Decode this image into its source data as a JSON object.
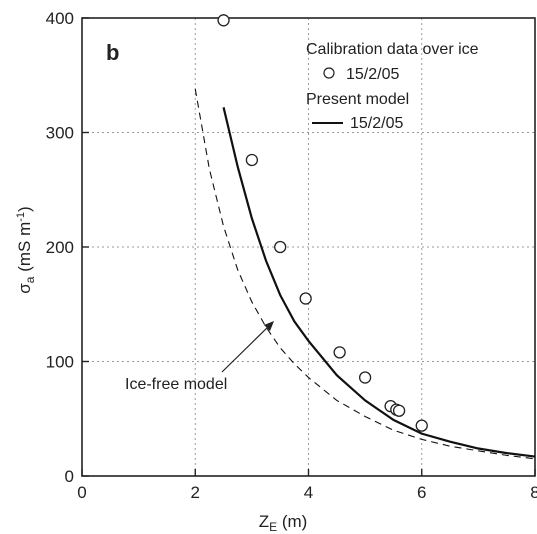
{
  "chart_data": {
    "type": "scatter",
    "panel_label": "b",
    "xlabel_main": "Z",
    "xlabel_sub": "E",
    "xlabel_unit": " (m)",
    "ylabel_sym": "σ",
    "ylabel_sub": "a",
    "ylabel_unit": " (mS m",
    "ylabel_sup": "-1",
    "ylabel_close": ")",
    "xlim": [
      0,
      8
    ],
    "ylim": [
      0,
      400
    ],
    "xticks": [
      0,
      2,
      4,
      6,
      8
    ],
    "yticks": [
      0,
      100,
      200,
      300,
      400
    ],
    "grid": true,
    "legend": {
      "placement": "top-right",
      "group1_title": "Calibration data over ice",
      "group1_entry": "15/2/05",
      "group2_title": "Present model",
      "group2_entry": "15/2/05"
    },
    "annotation": "Ice-free model",
    "series": [
      {
        "kind": "markers",
        "marker": "open-circle",
        "x": [
          2.5,
          3.0,
          3.5,
          3.95,
          4.55,
          5.0,
          5.45,
          5.55,
          5.6,
          6.0
        ],
        "y": [
          398,
          276,
          200,
          155,
          108,
          86,
          61,
          58,
          57,
          44
        ]
      },
      {
        "kind": "line",
        "style": "solid",
        "x": [
          2.5,
          2.75,
          3.0,
          3.25,
          3.5,
          3.75,
          4.0,
          4.5,
          5.0,
          5.5,
          6.0,
          6.5,
          7.0,
          7.5,
          8.0
        ],
        "y": [
          322,
          270,
          225,
          188,
          158,
          135,
          118,
          88,
          66,
          49,
          37,
          30,
          24,
          20,
          17
        ]
      },
      {
        "kind": "line",
        "style": "dashed",
        "x": [
          2.0,
          2.25,
          2.5,
          2.75,
          3.0,
          3.25,
          3.5,
          3.75,
          4.0,
          4.5,
          5.0,
          5.5,
          6.0,
          6.5,
          7.0,
          7.5,
          8.0
        ],
        "y": [
          338,
          268,
          218,
          180,
          152,
          130,
          112,
          98,
          86,
          66,
          52,
          40,
          32,
          26,
          22,
          18,
          15
        ]
      }
    ]
  }
}
